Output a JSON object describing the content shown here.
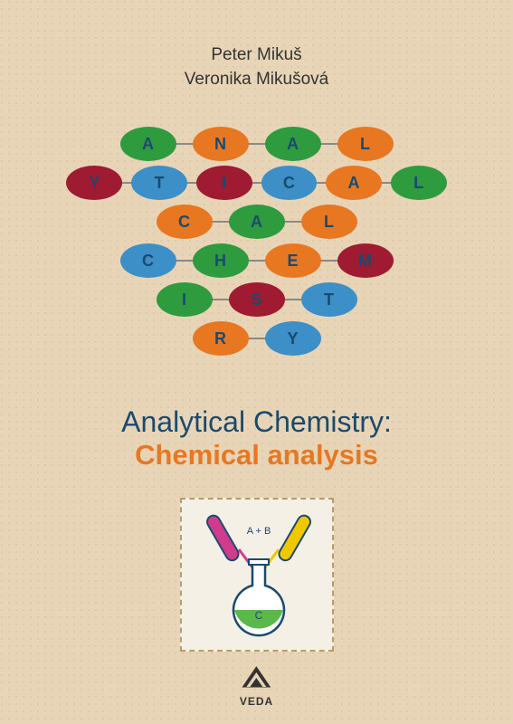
{
  "authors": [
    "Peter Mikuš",
    "Veronika Mikušová"
  ],
  "title_line1": "Analytical Chemistry:",
  "title_line2": "Chemical analysis",
  "title_line2_color": "#e87722",
  "publisher": "VEDA",
  "colors": {
    "green": "#2e9b3f",
    "orange": "#e87722",
    "darkred": "#9e1b32",
    "blue": "#3d8fc7",
    "letter": "#1a4a6e"
  },
  "ellipse_rows": [
    [
      {
        "letter": "A",
        "color": "#2e9b3f"
      },
      {
        "letter": "N",
        "color": "#e87722"
      },
      {
        "letter": "A",
        "color": "#2e9b3f"
      },
      {
        "letter": "L",
        "color": "#e87722"
      }
    ],
    [
      {
        "letter": "Y",
        "color": "#9e1b32"
      },
      {
        "letter": "T",
        "color": "#3d8fc7"
      },
      {
        "letter": "I",
        "color": "#9e1b32"
      },
      {
        "letter": "C",
        "color": "#3d8fc7"
      },
      {
        "letter": "A",
        "color": "#e87722"
      },
      {
        "letter": "L",
        "color": "#2e9b3f"
      }
    ],
    [
      {
        "letter": "C",
        "color": "#3d8fc7"
      },
      {
        "letter": "H",
        "color": "#2e9b3f"
      },
      {
        "letter": "E",
        "color": "#e87722"
      },
      {
        "letter": "M",
        "color": "#9e1b32"
      }
    ],
    [
      {
        "letter": "I",
        "color": "#2e9b3f"
      },
      {
        "letter": "S",
        "color": "#9e1b32"
      },
      {
        "letter": "T",
        "color": "#3d8fc7"
      }
    ],
    [
      {
        "letter": "R",
        "color": "#e87722"
      },
      {
        "letter": "Y",
        "color": "#3d8fc7"
      }
    ]
  ],
  "row3_split": {
    "left": [
      {
        "letter": "C",
        "color": "#e87722"
      },
      {
        "letter": "A",
        "color": "#2e9b3f"
      },
      {
        "letter": "L",
        "color": "#e87722"
      }
    ],
    "right": []
  },
  "flask": {
    "label_top": "A + B",
    "label_bottom": "C",
    "tube_left_color": "#d13b8c",
    "tube_right_color": "#f0c800",
    "liquid_color": "#5bb84a",
    "outline": "#1a4a6e"
  }
}
